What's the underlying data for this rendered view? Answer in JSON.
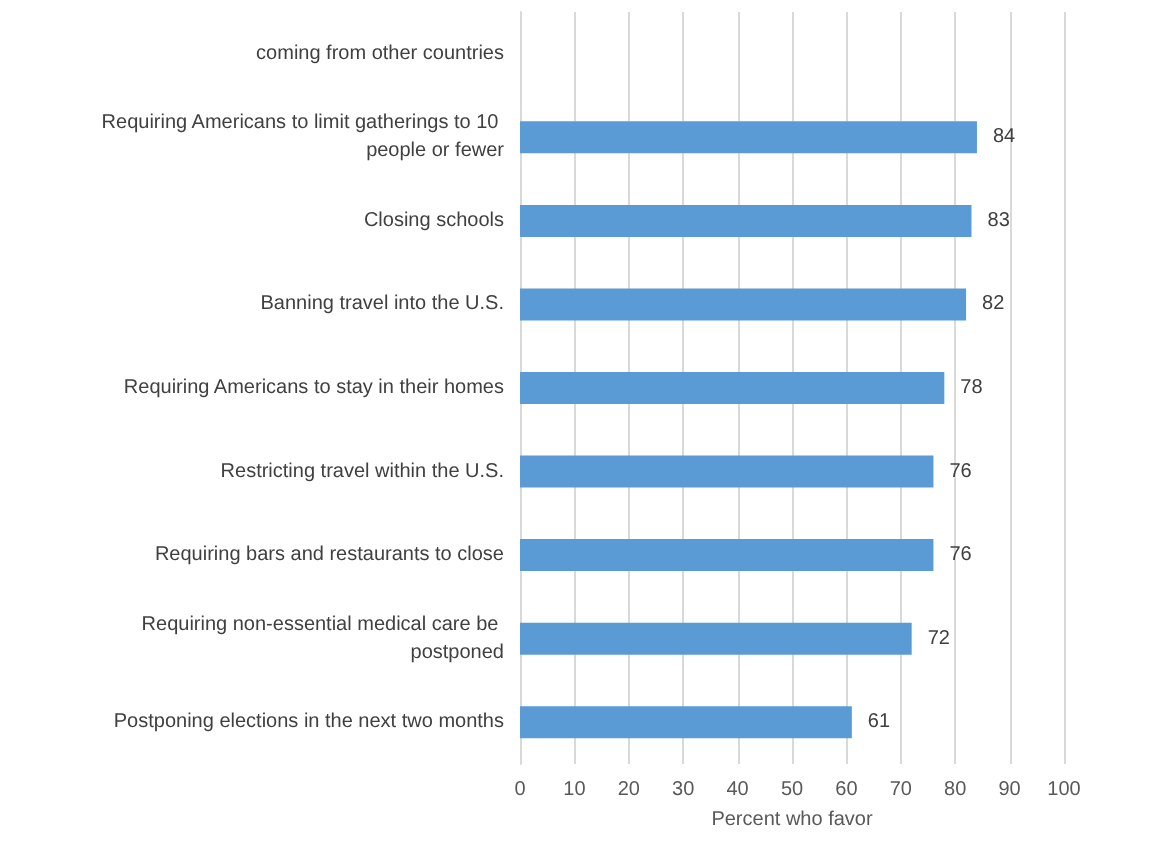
{
  "chart_data": {
    "type": "bar",
    "orientation": "horizontal",
    "xlabel": "Percent who favor",
    "categories": [
      "coming from other countries",
      "Requiring Americans to limit gatherings to 10 people or fewer",
      "Closing schools",
      "Banning travel into the U.S.",
      "Requiring Americans to stay in their homes",
      "Restricting travel within the U.S.",
      "Requiring bars and restaurants to close",
      "Requiring non-essential medical care be postponed",
      "Postponing elections in the next two months"
    ],
    "values": [
      null,
      84,
      83,
      82,
      78,
      76,
      76,
      72,
      61
    ],
    "color": "#5b9bd5",
    "data_labels": true,
    "grid": "x",
    "xlim": [
      0,
      100
    ],
    "xticks": [
      0,
      10,
      20,
      30,
      40,
      50,
      60,
      70,
      80,
      90,
      100
    ]
  }
}
